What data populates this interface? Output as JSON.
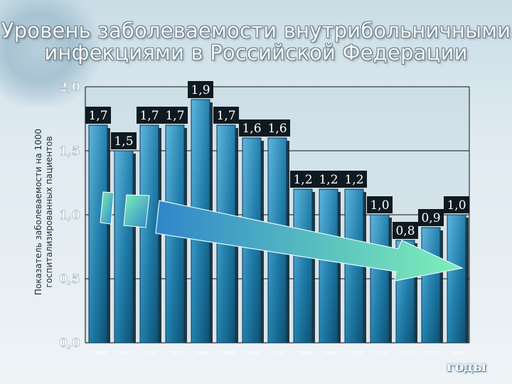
{
  "title_lines": [
    "Уровень заболеваемости внутрибольничными",
    "инфекциями в Российской Федерации"
  ],
  "unit_label": "годы",
  "chart_data": {
    "type": "bar",
    "title": "Уровень заболеваемости внутрибольничными инфекциями в Российской Федерации",
    "ylabel": "Показатель заболеваемости на 1000 госпитализированных пациентов",
    "xlabel": "годы",
    "ylim": [
      0,
      2.0
    ],
    "yticks": [
      "0,0",
      "0,5",
      "1,0",
      "1,5",
      "2,0"
    ],
    "categories": [
      "1990",
      "1991",
      "1992",
      "1993",
      "1994",
      "1995",
      "1996",
      "1997",
      "1998",
      "1999",
      "2000",
      "2001",
      "2002",
      "2003",
      "2004"
    ],
    "values": [
      1.7,
      1.5,
      1.7,
      1.7,
      1.9,
      1.7,
      1.6,
      1.6,
      1.2,
      1.2,
      1.2,
      1.0,
      0.8,
      0.9,
      1.0
    ],
    "data_labels": [
      "1,7",
      "1,5",
      "1,7",
      "1,7",
      "1,9",
      "1,7",
      "1,6",
      "1,6",
      "1,2",
      "1,2",
      "1,2",
      "1,0",
      "0,8",
      "0,9",
      "1,0"
    ],
    "trend_arrow": "decreasing",
    "colors": {
      "bar_top": "#5fb6de",
      "bar_bottom": "#0d4f72",
      "bar_shadow": "#0f2430",
      "arrow_start": "#2f86c9",
      "arrow_end": "#7ff0b8",
      "grid": "#111111"
    }
  }
}
